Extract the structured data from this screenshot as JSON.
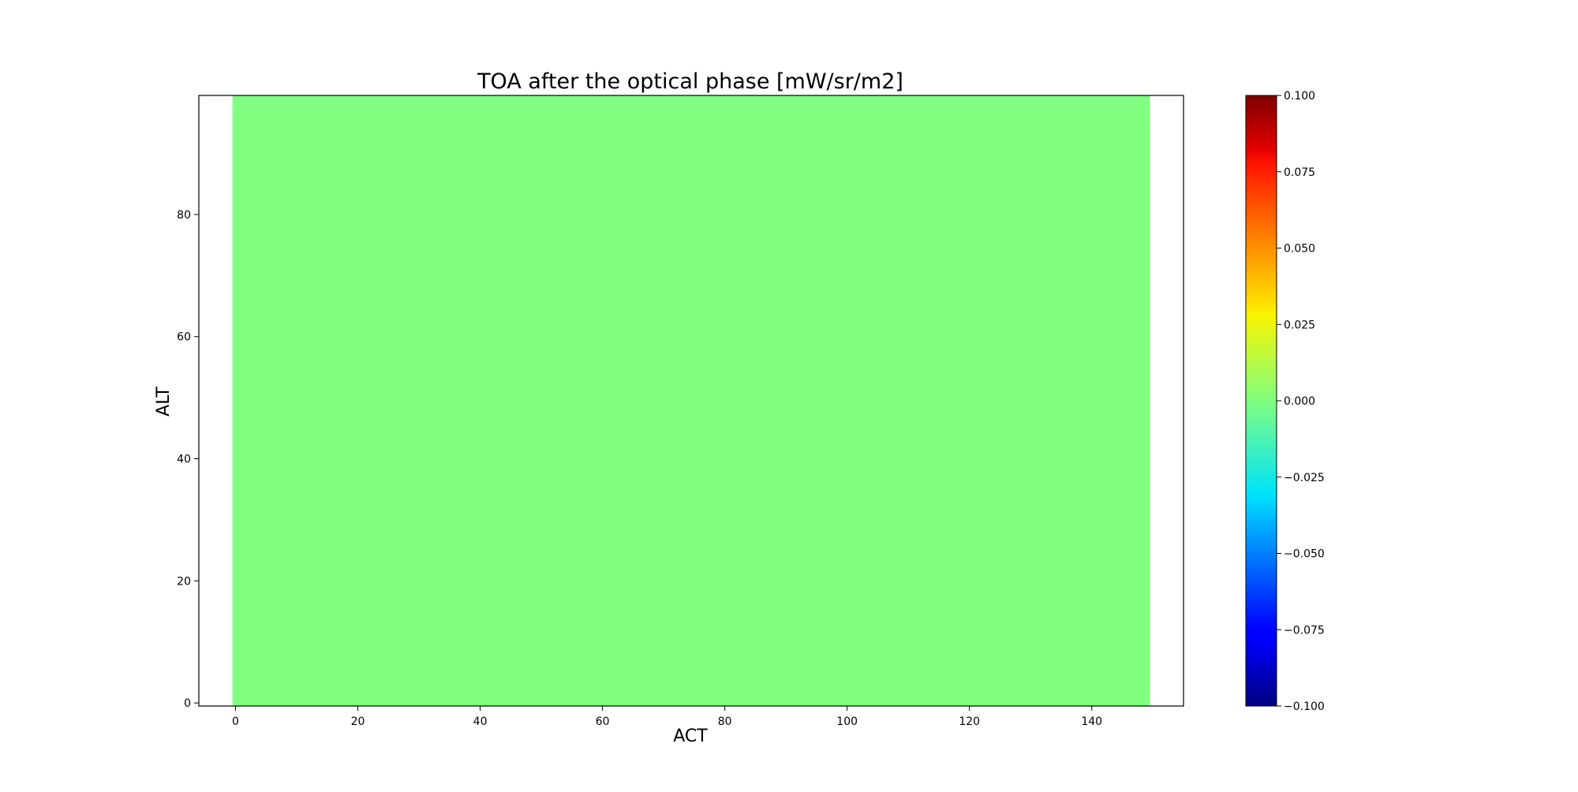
{
  "chart_data": {
    "type": "heatmap",
    "title": "TOA after the optical phase [mW/sr/m2]",
    "xlabel": "ACT",
    "ylabel": "ALT",
    "xlim": [
      -6,
      155
    ],
    "ylim": [
      -0.5,
      99.5
    ],
    "x_extent": [
      -0.5,
      149.5
    ],
    "y_extent": [
      -0.5,
      99.5
    ],
    "x_ticks": [
      0,
      20,
      40,
      60,
      80,
      100,
      120,
      140
    ],
    "y_ticks": [
      0,
      20,
      40,
      60,
      80
    ],
    "x_tick_labels": [
      "0",
      "20",
      "40",
      "60",
      "80",
      "100",
      "120",
      "140"
    ],
    "y_tick_labels": [
      "0",
      "20",
      "40",
      "60",
      "80"
    ],
    "values": "constant 0.000 over the full 150 × 100 grid",
    "value": 0.0,
    "colormap": "jet",
    "fill_color": "#80ff80",
    "colorbar": {
      "range": [
        -0.1,
        0.1
      ],
      "ticks": [
        0.1,
        0.075,
        0.05,
        0.025,
        0.0,
        -0.025,
        -0.05,
        -0.075,
        -0.1
      ],
      "tick_labels": [
        "0.100",
        "0.075",
        "0.050",
        "0.025",
        "0.000",
        "−0.025",
        "−0.050",
        "−0.075",
        "−0.100"
      ]
    },
    "grid": false,
    "legend": "none"
  }
}
